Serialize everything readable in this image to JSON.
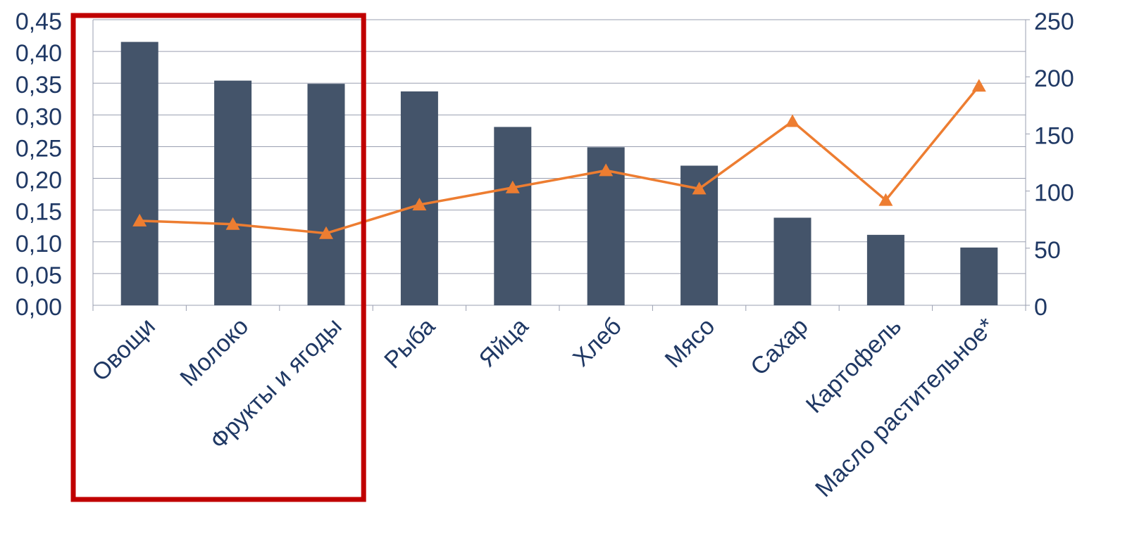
{
  "chart_data": {
    "type": "bar",
    "categories": [
      "Овощи",
      "Молоко",
      "Фрукты и ягоды",
      "Рыба",
      "Яйца",
      "Хлеб",
      "Мясо",
      "Сахар",
      "Картофель",
      "Масло растительное*"
    ],
    "series": [
      {
        "type": "bar",
        "axis": "left",
        "color": "#44546A",
        "values": [
          0.415,
          0.354,
          0.349,
          0.337,
          0.281,
          0.249,
          0.22,
          0.138,
          0.111,
          0.091
        ]
      },
      {
        "type": "line",
        "axis": "right",
        "color": "#ED7D31",
        "marker": "triangle",
        "values": [
          74,
          71,
          63,
          88,
          103,
          118,
          102,
          161,
          92,
          192
        ]
      }
    ],
    "y_left": {
      "min": 0,
      "max": 0.45,
      "ticks": [
        "0,00",
        "0,05",
        "0,10",
        "0,15",
        "0,20",
        "0,25",
        "0,30",
        "0,35",
        "0,40",
        "0,45"
      ]
    },
    "y_right": {
      "min": 0,
      "max": 250,
      "ticks": [
        "0",
        "50",
        "100",
        "150",
        "200",
        "250"
      ]
    },
    "grid": true,
    "legend": "none",
    "highlight": {
      "categories": [
        "Овощи",
        "Молоко",
        "Фрукты и ягоды"
      ],
      "color": "#C00000"
    },
    "colors": {
      "axis_text": "#1F3864",
      "gridline": "#9A9FB0"
    }
  }
}
